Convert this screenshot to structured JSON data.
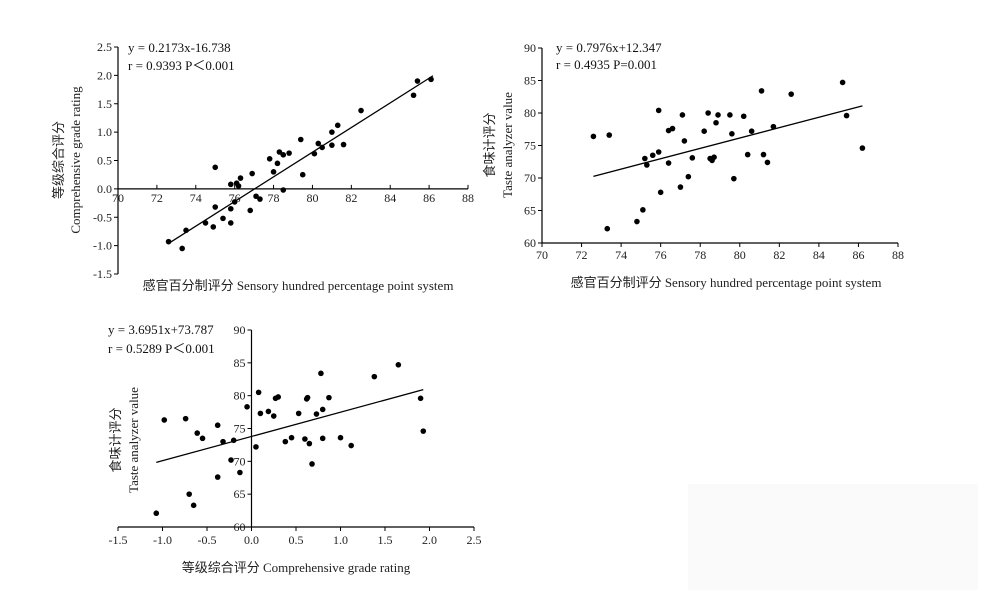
{
  "chart_data": [
    {
      "type": "scatter",
      "equation": "y = 0.2173x-16.738",
      "stats": "r = 0.9393  P＜0.001",
      "xlabel": "感官百分制评分  Sensory hundred percentage point system",
      "ylabel_cn": "等级综合评分",
      "ylabel_en": "Comprehensive grade rating",
      "xlim": [
        70,
        88
      ],
      "ylim": [
        -1.5,
        2.5
      ],
      "xticks": [
        "70",
        "72",
        "74",
        "76",
        "78",
        "80",
        "82",
        "84",
        "86",
        "88"
      ],
      "yticks": [
        "-1.5",
        "-1.0",
        "-0.5",
        "0.0",
        "0.5",
        "1.0",
        "1.5",
        "2.0",
        "2.5"
      ],
      "fit": {
        "slope": 0.2173,
        "intercept": -16.738,
        "x_range": [
          72.6,
          86.2
        ]
      },
      "points": [
        [
          72.6,
          -0.93
        ],
        [
          73.3,
          -1.05
        ],
        [
          73.5,
          -0.73
        ],
        [
          74.5,
          -0.6
        ],
        [
          74.9,
          -0.67
        ],
        [
          75.0,
          -0.32
        ],
        [
          75.0,
          0.38
        ],
        [
          75.4,
          -0.52
        ],
        [
          75.8,
          -0.6
        ],
        [
          75.8,
          -0.35
        ],
        [
          75.8,
          0.08
        ],
        [
          76.0,
          -0.23
        ],
        [
          76.1,
          0.1
        ],
        [
          76.2,
          0.05
        ],
        [
          76.3,
          0.19
        ],
        [
          76.8,
          -0.38
        ],
        [
          76.9,
          0.27
        ],
        [
          77.1,
          -0.13
        ],
        [
          77.3,
          -0.18
        ],
        [
          77.8,
          0.53
        ],
        [
          78.0,
          0.3
        ],
        [
          78.2,
          0.45
        ],
        [
          78.3,
          0.65
        ],
        [
          78.5,
          0.6
        ],
        [
          78.5,
          -0.02
        ],
        [
          78.8,
          0.63
        ],
        [
          79.4,
          0.87
        ],
        [
          79.5,
          0.25
        ],
        [
          80.1,
          0.62
        ],
        [
          80.3,
          0.8
        ],
        [
          80.5,
          0.73
        ],
        [
          81.0,
          1.0
        ],
        [
          81.0,
          0.77
        ],
        [
          81.3,
          1.12
        ],
        [
          81.6,
          0.78
        ],
        [
          82.5,
          1.38
        ],
        [
          85.2,
          1.65
        ],
        [
          85.4,
          1.9
        ],
        [
          86.1,
          1.93
        ]
      ]
    },
    {
      "type": "scatter",
      "equation": "y = 0.7976x+12.347",
      "stats": "r = 0.4935  P=0.001",
      "xlabel": "感官百分制评分  Sensory hundred percentage point system",
      "ylabel_cn": "食味计评分",
      "ylabel_en": "Taste analyzer value",
      "xlim": [
        70,
        88
      ],
      "ylim": [
        60,
        90
      ],
      "xticks": [
        "70",
        "72",
        "74",
        "76",
        "78",
        "80",
        "82",
        "84",
        "86",
        "88"
      ],
      "yticks": [
        "60",
        "65",
        "70",
        "75",
        "80",
        "85",
        "90"
      ],
      "fit": {
        "slope": 0.7976,
        "intercept": 12.347,
        "x_range": [
          72.6,
          86.2
        ]
      },
      "points": [
        [
          72.6,
          76.4
        ],
        [
          73.4,
          76.6
        ],
        [
          73.3,
          62.2
        ],
        [
          74.8,
          63.3
        ],
        [
          75.1,
          65.1
        ],
        [
          75.2,
          73.0
        ],
        [
          75.3,
          72.0
        ],
        [
          75.6,
          73.5
        ],
        [
          75.9,
          74.0
        ],
        [
          75.9,
          80.4
        ],
        [
          76.0,
          67.8
        ],
        [
          76.4,
          77.3
        ],
        [
          76.4,
          72.3
        ],
        [
          76.6,
          77.6
        ],
        [
          77.0,
          68.6
        ],
        [
          77.1,
          79.7
        ],
        [
          77.2,
          75.7
        ],
        [
          77.4,
          70.2
        ],
        [
          77.6,
          73.1
        ],
        [
          78.2,
          77.2
        ],
        [
          78.4,
          80.0
        ],
        [
          78.5,
          73.0
        ],
        [
          78.6,
          72.7
        ],
        [
          78.7,
          73.2
        ],
        [
          78.8,
          78.5
        ],
        [
          78.9,
          79.7
        ],
        [
          79.5,
          79.7
        ],
        [
          79.6,
          76.8
        ],
        [
          79.7,
          69.9
        ],
        [
          80.2,
          79.5
        ],
        [
          80.4,
          73.6
        ],
        [
          80.6,
          77.2
        ],
        [
          81.1,
          83.4
        ],
        [
          81.2,
          73.6
        ],
        [
          81.4,
          72.4
        ],
        [
          81.7,
          77.9
        ],
        [
          82.6,
          82.9
        ],
        [
          85.2,
          84.7
        ],
        [
          85.4,
          79.6
        ],
        [
          86.2,
          74.6
        ]
      ]
    },
    {
      "type": "scatter",
      "equation": "y = 3.6951x+73.787",
      "stats": "r = 0.5289  P＜0.001",
      "xlabel": "等级综合评分 Comprehensive grade rating",
      "ylabel_cn": "食味计评分",
      "ylabel_en": "Taste analyzer value",
      "xlim": [
        -1.5,
        2.5
      ],
      "ylim": [
        60,
        90
      ],
      "xticks": [
        "-1.5",
        "-1.0",
        "-0.5",
        "0.0",
        "0.5",
        "1.0",
        "1.5",
        "2.0",
        "2.5"
      ],
      "yticks": [
        "60",
        "65",
        "70",
        "75",
        "80",
        "85",
        "90"
      ],
      "fit": {
        "slope": 3.6951,
        "intercept": 73.787,
        "x_range": [
          -1.07,
          1.93
        ]
      },
      "points": [
        [
          -1.07,
          62.1
        ],
        [
          -0.98,
          76.3
        ],
        [
          -0.74,
          76.5
        ],
        [
          -0.7,
          65.0
        ],
        [
          -0.65,
          63.3
        ],
        [
          -0.61,
          74.3
        ],
        [
          -0.55,
          73.5
        ],
        [
          -0.38,
          75.5
        ],
        [
          -0.38,
          67.6
        ],
        [
          -0.32,
          73.0
        ],
        [
          -0.23,
          70.2
        ],
        [
          -0.2,
          73.2
        ],
        [
          -0.13,
          68.3
        ],
        [
          -0.05,
          78.3
        ],
        [
          0.05,
          72.2
        ],
        [
          0.08,
          80.5
        ],
        [
          0.1,
          77.3
        ],
        [
          0.19,
          77.6
        ],
        [
          0.25,
          76.9
        ],
        [
          0.27,
          79.6
        ],
        [
          0.3,
          79.8
        ],
        [
          0.38,
          73.0
        ],
        [
          0.45,
          73.6
        ],
        [
          0.53,
          77.3
        ],
        [
          0.6,
          73.4
        ],
        [
          0.62,
          79.5
        ],
        [
          0.63,
          79.7
        ],
        [
          0.65,
          72.7
        ],
        [
          0.73,
          77.2
        ],
        [
          0.78,
          83.4
        ],
        [
          0.8,
          73.5
        ],
        [
          0.8,
          77.9
        ],
        [
          0.87,
          79.7
        ],
        [
          1.0,
          73.6
        ],
        [
          1.12,
          72.4
        ],
        [
          1.38,
          82.9
        ],
        [
          1.65,
          84.7
        ],
        [
          1.9,
          79.6
        ],
        [
          1.93,
          74.6
        ],
        [
          0.68,
          69.6
        ]
      ]
    }
  ]
}
